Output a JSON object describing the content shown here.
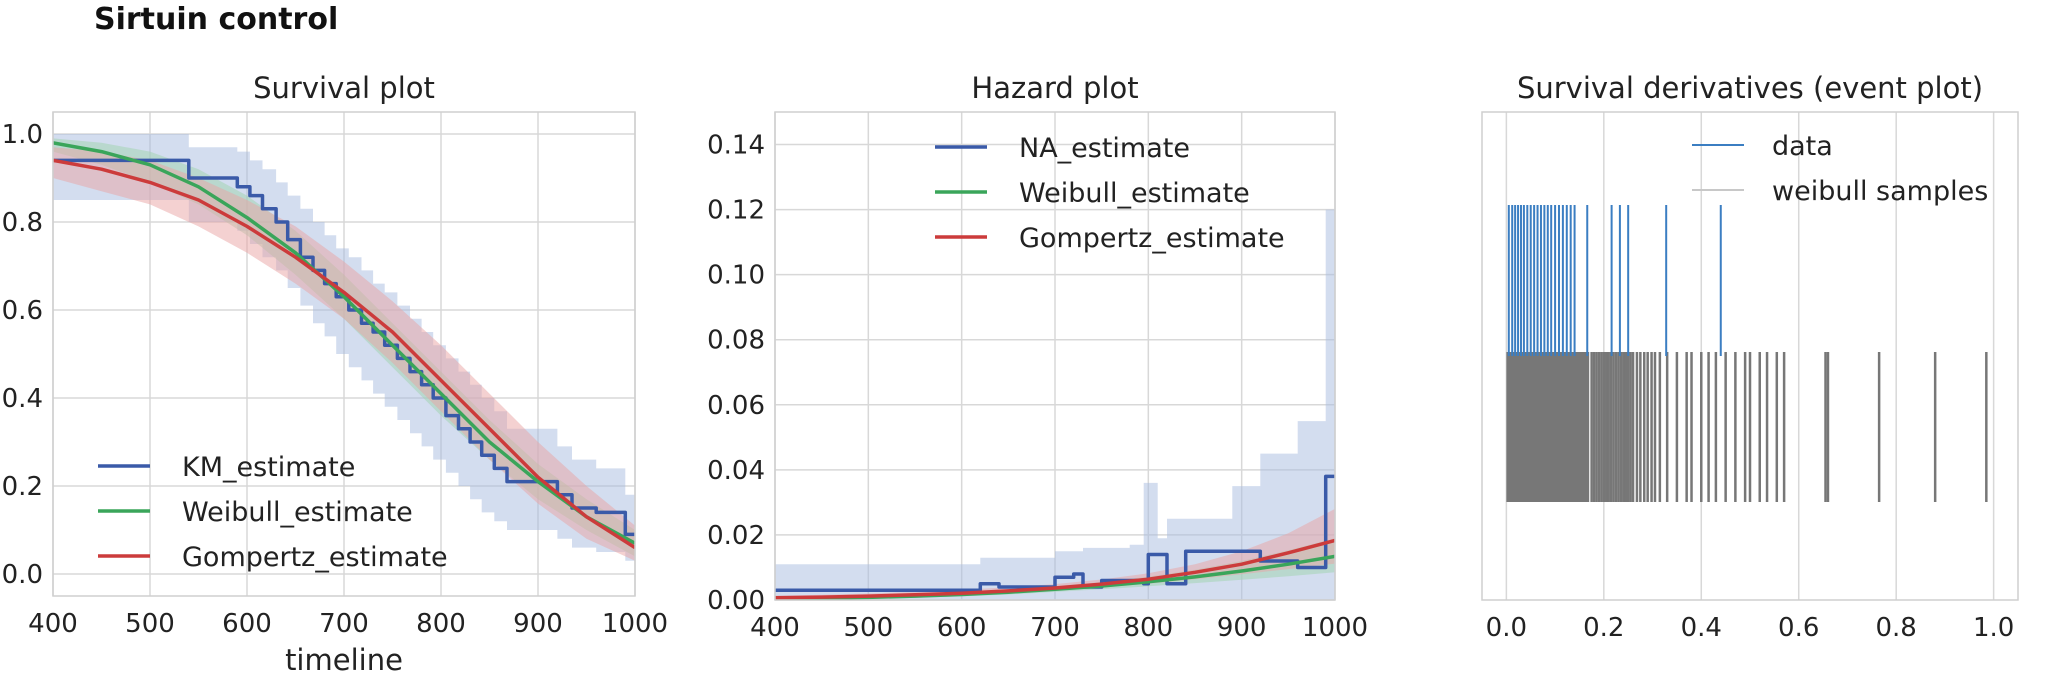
{
  "figure_title": "Sirtuin control",
  "colors": {
    "km": "#3a5aa8",
    "weibull": "#3aa55a",
    "gompertz": "#cc3b3b",
    "ci_blue": "#a8bbe0",
    "ci_green": "#9fd3ae",
    "ci_red": "#eaa3a3",
    "event_data": "#3b7ec2",
    "event_samples": "#777777",
    "grid": "#d8d8d8"
  },
  "chart_data": [
    {
      "type": "line",
      "title": "Survival plot",
      "xlabel": "timeline",
      "ylabel": "",
      "xlim": [
        400,
        1000
      ],
      "ylim": [
        -0.05,
        1.05
      ],
      "x_ticks": [
        400,
        500,
        600,
        700,
        800,
        900,
        1000
      ],
      "y_ticks": [
        0.0,
        0.2,
        0.4,
        0.6,
        0.8,
        1.0
      ],
      "x_tick_labels": [
        "400",
        "500",
        "600",
        "700",
        "800",
        "900",
        "1000"
      ],
      "y_tick_labels": [
        "0.0",
        "0.2",
        "0.4",
        "0.6",
        "0.8",
        "1.0"
      ],
      "grid": true,
      "legend_position": "lower-left",
      "series": [
        {
          "name": "KM_estimate",
          "style": "step",
          "color": "#3a5aa8",
          "x": [
            400,
            540,
            590,
            603,
            616,
            630,
            642,
            655,
            668,
            680,
            692,
            705,
            718,
            730,
            742,
            755,
            768,
            780,
            792,
            805,
            818,
            830,
            842,
            855,
            868,
            880,
            920,
            935,
            960,
            990,
            1000
          ],
          "y": [
            0.94,
            0.9,
            0.88,
            0.86,
            0.83,
            0.8,
            0.76,
            0.72,
            0.69,
            0.66,
            0.63,
            0.6,
            0.57,
            0.55,
            0.52,
            0.49,
            0.46,
            0.43,
            0.4,
            0.36,
            0.33,
            0.3,
            0.27,
            0.24,
            0.21,
            0.21,
            0.18,
            0.15,
            0.14,
            0.09,
            0.09
          ],
          "ci_lower": [
            0.85,
            0.8,
            0.78,
            0.75,
            0.72,
            0.69,
            0.65,
            0.61,
            0.57,
            0.54,
            0.5,
            0.47,
            0.44,
            0.41,
            0.38,
            0.35,
            0.32,
            0.29,
            0.26,
            0.23,
            0.2,
            0.17,
            0.14,
            0.12,
            0.1,
            0.1,
            0.08,
            0.06,
            0.05,
            0.03,
            0.03
          ],
          "ci_upper": [
            1.0,
            0.97,
            0.96,
            0.94,
            0.92,
            0.89,
            0.86,
            0.83,
            0.8,
            0.77,
            0.74,
            0.72,
            0.69,
            0.66,
            0.64,
            0.61,
            0.58,
            0.55,
            0.52,
            0.49,
            0.46,
            0.43,
            0.4,
            0.37,
            0.33,
            0.33,
            0.29,
            0.26,
            0.24,
            0.18,
            0.18
          ]
        },
        {
          "name": "Weibull_estimate",
          "style": "smooth",
          "color": "#3aa55a",
          "x": [
            400,
            450,
            500,
            550,
            600,
            650,
            700,
            750,
            800,
            850,
            900,
            950,
            1000
          ],
          "y": [
            0.98,
            0.96,
            0.93,
            0.88,
            0.81,
            0.73,
            0.63,
            0.52,
            0.41,
            0.3,
            0.21,
            0.13,
            0.07
          ],
          "ci_lower": [
            0.96,
            0.93,
            0.89,
            0.84,
            0.77,
            0.68,
            0.58,
            0.47,
            0.36,
            0.26,
            0.17,
            0.1,
            0.04
          ],
          "ci_upper": [
            0.99,
            0.98,
            0.96,
            0.92,
            0.86,
            0.78,
            0.68,
            0.57,
            0.46,
            0.35,
            0.25,
            0.17,
            0.1
          ]
        },
        {
          "name": "Gompertz_estimate",
          "style": "smooth",
          "color": "#cc3b3b",
          "x": [
            400,
            450,
            500,
            550,
            600,
            650,
            700,
            750,
            800,
            850,
            900,
            950,
            1000
          ],
          "y": [
            0.94,
            0.92,
            0.89,
            0.85,
            0.79,
            0.72,
            0.64,
            0.55,
            0.44,
            0.33,
            0.22,
            0.13,
            0.06
          ],
          "ci_lower": [
            0.9,
            0.87,
            0.84,
            0.79,
            0.73,
            0.66,
            0.58,
            0.48,
            0.37,
            0.26,
            0.16,
            0.08,
            0.03
          ],
          "ci_upper": [
            0.97,
            0.96,
            0.94,
            0.9,
            0.85,
            0.79,
            0.71,
            0.62,
            0.52,
            0.41,
            0.3,
            0.2,
            0.11
          ]
        }
      ]
    },
    {
      "type": "line",
      "title": "Hazard plot",
      "xlabel": "",
      "ylabel": "",
      "xlim": [
        400,
        1000
      ],
      "ylim": [
        0,
        0.15
      ],
      "x_ticks": [
        400,
        500,
        600,
        700,
        800,
        900,
        1000
      ],
      "y_ticks": [
        0.0,
        0.02,
        0.04,
        0.06,
        0.08,
        0.1,
        0.12,
        0.14
      ],
      "x_tick_labels": [
        "400",
        "500",
        "600",
        "700",
        "800",
        "900",
        "1000"
      ],
      "y_tick_labels": [
        "0.00",
        "0.02",
        "0.04",
        "0.06",
        "0.08",
        "0.10",
        "0.12",
        "0.14"
      ],
      "grid": true,
      "legend_position": "top-center",
      "series": [
        {
          "name": "NA_estimate",
          "style": "step",
          "color": "#3a5aa8",
          "x": [
            400,
            540,
            620,
            640,
            660,
            700,
            720,
            730,
            750,
            780,
            795,
            800,
            810,
            820,
            840,
            890,
            920,
            960,
            990,
            1000
          ],
          "y": [
            0.003,
            0.003,
            0.005,
            0.004,
            0.004,
            0.007,
            0.008,
            0.004,
            0.006,
            0.006,
            0.005,
            0.014,
            0.014,
            0.005,
            0.015,
            0.015,
            0.012,
            0.01,
            0.038,
            0.038
          ],
          "ci_lower": [
            0.0,
            0.0,
            0.0,
            0.0,
            0.0,
            0.0,
            0.0,
            0.0,
            0.0,
            0.0,
            0.0,
            0.0,
            0.0,
            0.0,
            0.0,
            0.0,
            0.0,
            0.0,
            0.0,
            0.0
          ],
          "ci_upper": [
            0.011,
            0.011,
            0.013,
            0.013,
            0.013,
            0.015,
            0.015,
            0.016,
            0.016,
            0.017,
            0.036,
            0.036,
            0.019,
            0.025,
            0.025,
            0.035,
            0.045,
            0.055,
            0.12,
            0.12
          ]
        },
        {
          "name": "Weibull_estimate",
          "style": "smooth",
          "color": "#3aa55a",
          "x": [
            400,
            450,
            500,
            550,
            600,
            650,
            700,
            750,
            800,
            850,
            900,
            950,
            1000
          ],
          "y": [
            0.0003,
            0.0005,
            0.0008,
            0.0012,
            0.0017,
            0.0024,
            0.0033,
            0.0043,
            0.0056,
            0.0071,
            0.0089,
            0.011,
            0.0134
          ],
          "ci_lower": [
            0.0001,
            0.0002,
            0.0004,
            0.0007,
            0.0011,
            0.0017,
            0.0025,
            0.0033,
            0.0042,
            0.0052,
            0.0062,
            0.0073,
            0.0085
          ],
          "ci_upper": [
            0.0006,
            0.0009,
            0.0013,
            0.0018,
            0.0024,
            0.0032,
            0.0042,
            0.0055,
            0.0072,
            0.0093,
            0.012,
            0.0153,
            0.019
          ]
        },
        {
          "name": "Gompertz_estimate",
          "style": "smooth",
          "color": "#cc3b3b",
          "x": [
            400,
            450,
            500,
            550,
            600,
            650,
            700,
            750,
            800,
            850,
            900,
            950,
            1000
          ],
          "y": [
            0.0007,
            0.0009,
            0.0012,
            0.0016,
            0.0021,
            0.0028,
            0.0037,
            0.0049,
            0.0064,
            0.0085,
            0.011,
            0.0145,
            0.0183
          ],
          "ci_lower": [
            0.0003,
            0.0005,
            0.0007,
            0.001,
            0.0014,
            0.002,
            0.0028,
            0.0038,
            0.005,
            0.0064,
            0.0079,
            0.0095,
            0.0112
          ],
          "ci_upper": [
            0.0013,
            0.0016,
            0.002,
            0.0025,
            0.0031,
            0.0039,
            0.0049,
            0.0063,
            0.0082,
            0.011,
            0.015,
            0.0205,
            0.028
          ]
        }
      ]
    },
    {
      "type": "scatter",
      "subtype": "event",
      "title": "Survival derivatives (event plot)",
      "xlabel": "",
      "ylabel": "",
      "xlim": [
        -0.05,
        1.05
      ],
      "x_ticks": [
        0.0,
        0.2,
        0.4,
        0.6,
        0.8,
        1.0
      ],
      "x_tick_labels": [
        "0.0",
        "0.2",
        "0.4",
        "0.6",
        "0.8",
        "1.0"
      ],
      "grid": true,
      "legend_position": "top-right",
      "series": [
        {
          "name": "data",
          "color": "#3b7ec2",
          "row": "upper",
          "values": [
            0.005,
            0.012,
            0.018,
            0.024,
            0.03,
            0.036,
            0.043,
            0.05,
            0.057,
            0.064,
            0.071,
            0.078,
            0.085,
            0.092,
            0.1,
            0.108,
            0.116,
            0.124,
            0.132,
            0.14,
            0.166,
            0.216,
            0.233,
            0.25,
            0.328,
            0.44
          ]
        },
        {
          "name": "weibull samples",
          "color": "#777777",
          "row": "lower",
          "dense_range": [
            0.0,
            0.17
          ],
          "values": [
            0.175,
            0.18,
            0.185,
            0.19,
            0.195,
            0.2,
            0.205,
            0.21,
            0.215,
            0.22,
            0.225,
            0.23,
            0.235,
            0.24,
            0.245,
            0.25,
            0.255,
            0.26,
            0.268,
            0.275,
            0.283,
            0.29,
            0.298,
            0.305,
            0.315,
            0.33,
            0.35,
            0.37,
            0.38,
            0.4,
            0.415,
            0.43,
            0.45,
            0.47,
            0.49,
            0.5,
            0.52,
            0.535,
            0.555,
            0.57,
            0.655,
            0.66,
            0.765,
            0.88,
            0.985
          ]
        }
      ]
    }
  ]
}
